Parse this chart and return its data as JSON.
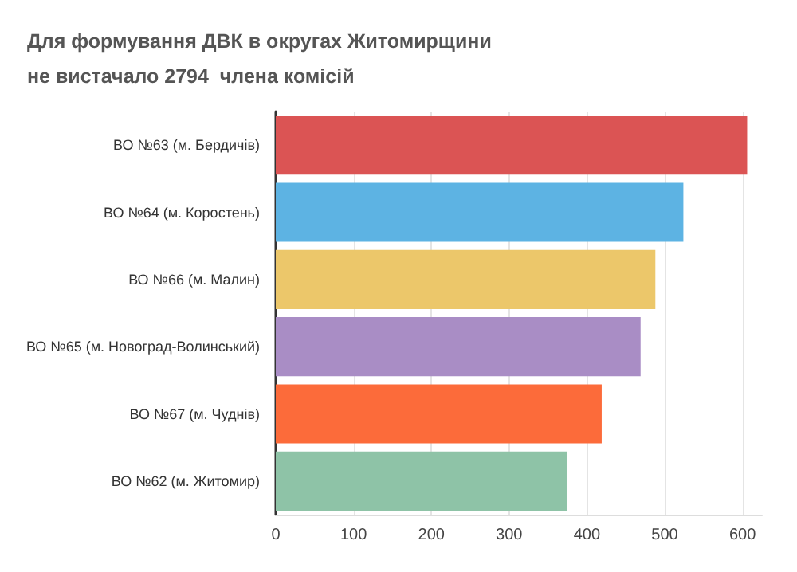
{
  "chart_data": {
    "type": "bar",
    "orientation": "horizontal",
    "title": "Для формування ДВК в округах Житомирщини не вистачало 2794  члена комісій",
    "categories": [
      "ВО №63 (м. Бердичів)",
      "ВО №64 (м. Коростень)",
      "ВО №66 (м. Малин)",
      "ВО №65 (м. Новоград-Волинський)",
      "ВО №67 (м. Чуднів)",
      "ВО №62 (м. Житомир)"
    ],
    "values": [
      606,
      524,
      488,
      469,
      419,
      374
    ],
    "colors": [
      "#db5454",
      "#5db3e3",
      "#ecc76a",
      "#a98dc5",
      "#fc6b3a",
      "#8ec3a7"
    ],
    "xlim": [
      0,
      625
    ],
    "xticks": [
      0,
      100,
      200,
      300,
      400,
      500,
      600
    ],
    "grid": "x"
  }
}
